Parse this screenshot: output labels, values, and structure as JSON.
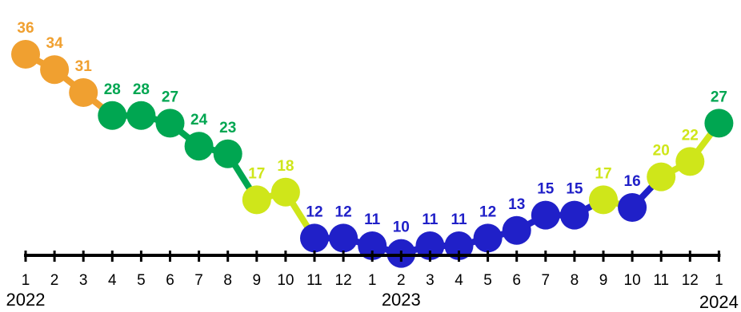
{
  "chart_data": {
    "type": "line",
    "title": "",
    "xlabel": "",
    "ylabel": "",
    "x": [
      "1",
      "2",
      "3",
      "4",
      "5",
      "6",
      "7",
      "8",
      "9",
      "10",
      "11",
      "12",
      "1",
      "2",
      "3",
      "4",
      "5",
      "6",
      "7",
      "8",
      "9",
      "10",
      "11",
      "12",
      "1"
    ],
    "values": [
      36,
      34,
      31,
      28,
      28,
      27,
      24,
      23,
      17,
      18,
      12,
      12,
      11,
      10,
      11,
      11,
      12,
      13,
      15,
      15,
      17,
      16,
      20,
      22,
      27
    ],
    "point_colors": [
      "#f0a030",
      "#f0a030",
      "#f0a030",
      "#00a651",
      "#00a651",
      "#00a651",
      "#00a651",
      "#00a651",
      "#cfe61a",
      "#cfe61a",
      "#2020c8",
      "#2020c8",
      "#2020c8",
      "#2020c8",
      "#2020c8",
      "#2020c8",
      "#2020c8",
      "#2020c8",
      "#2020c8",
      "#2020c8",
      "#cfe61a",
      "#2020c8",
      "#cfe61a",
      "#cfe61a",
      "#00a651"
    ],
    "years": [
      {
        "label": "2022",
        "index": 0
      },
      {
        "label": "2023",
        "index": 13
      },
      {
        "label": "2024",
        "index": 24
      }
    ],
    "ylim": [
      10,
      36
    ],
    "grid": false,
    "legend": "none"
  }
}
